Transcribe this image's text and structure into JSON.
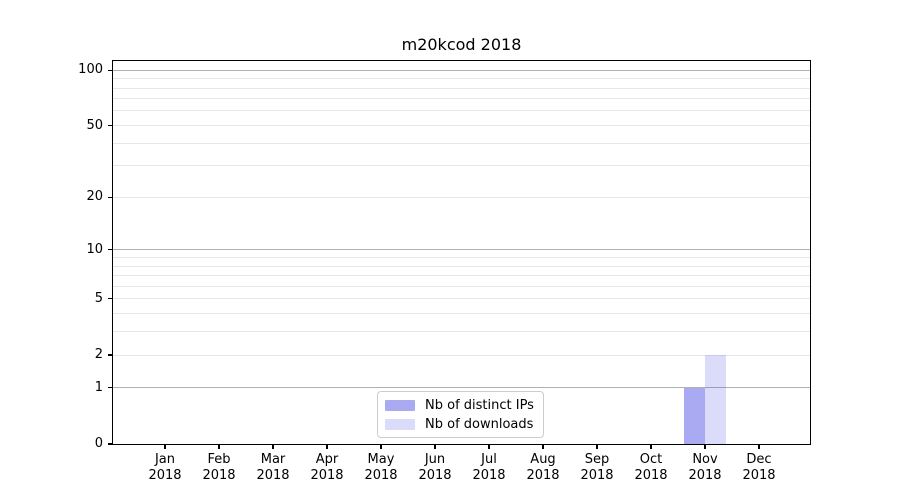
{
  "chart_data": {
    "type": "bar",
    "title": "m20kcod 2018",
    "categories": [
      "Jan",
      "Feb",
      "Mar",
      "Apr",
      "May",
      "Jun",
      "Jul",
      "Aug",
      "Sep",
      "Oct",
      "Nov",
      "Dec"
    ],
    "category_year": "2018",
    "series": [
      {
        "name": "Nb of distinct IPs",
        "color": "rgba(85,85,230,0.50)",
        "values": [
          0,
          0,
          0,
          0,
          0,
          0,
          0,
          0,
          0,
          0,
          1,
          0
        ]
      },
      {
        "name": "Nb of downloads",
        "color": "rgba(85,85,230,0.21)",
        "values": [
          0,
          0,
          0,
          0,
          0,
          0,
          0,
          0,
          0,
          0,
          2,
          0
        ]
      }
    ],
    "xlabel": "",
    "ylabel": "",
    "yscale": "log1p",
    "ylim": [
      0,
      112
    ],
    "yticks": [
      0,
      1,
      2,
      5,
      10,
      20,
      50,
      100
    ],
    "major_gridline_values": [
      1,
      10,
      100
    ],
    "minor_gridline_values": [
      2,
      3,
      4,
      5,
      6,
      7,
      8,
      9,
      20,
      30,
      40,
      50,
      60,
      70,
      80,
      90
    ],
    "grid": true,
    "legend_position": "lower center"
  },
  "colors": {
    "major_grid": "#b0b0b0",
    "minor_grid": "#e7e7e7",
    "spine": "#000000",
    "text": "#000000",
    "legend_border": "#cccccc"
  }
}
